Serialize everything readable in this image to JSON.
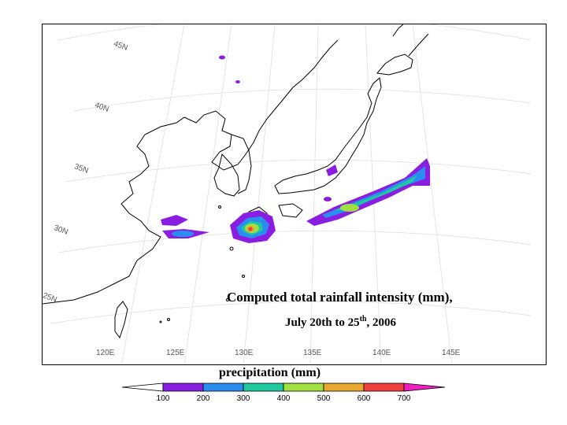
{
  "map": {
    "lat_labels": [
      "45N",
      "40N",
      "35N",
      "30N",
      "25N"
    ],
    "lon_labels": [
      "120E",
      "125E",
      "130E",
      "135E",
      "140E",
      "145E"
    ]
  },
  "caption": {
    "line1": "Computed total rainfall intensity (mm),",
    "line2_prefix": "July 20th to 25",
    "line2_sup": "th",
    "line2_suffix": ",  2006"
  },
  "legend": {
    "title": "precipitation (mm)",
    "ticks": [
      "100",
      "200",
      "300",
      "400",
      "500",
      "600",
      "700"
    ],
    "colors": [
      "#ffffff",
      "#8a1ee0",
      "#2a8ef0",
      "#20c8a0",
      "#a0e040",
      "#e8a830",
      "#f04040",
      "#f020c0"
    ]
  }
}
